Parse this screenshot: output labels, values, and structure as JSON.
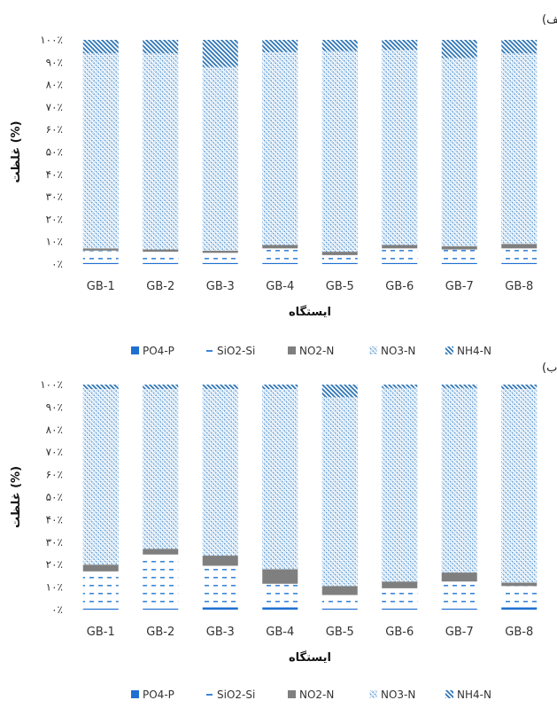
{
  "chart_data": [
    {
      "type": "bar",
      "stacked": true,
      "normalized": true,
      "panel_label": "(الف)",
      "xlabel": "ایستگاه",
      "ylabel": "غلظت (%)",
      "ylim": [
        0,
        100
      ],
      "yticks": [
        "۰٪",
        "۱۰٪",
        "۲۰٪",
        "۳۰٪",
        "۴۰٪",
        "۵۰٪",
        "۶۰٪",
        "۷۰٪",
        "۸۰٪",
        "۹۰٪",
        "۱۰۰٪"
      ],
      "grid": false,
      "legend_position": "bottom",
      "categories": [
        "GB-1",
        "GB-2",
        "GB-3",
        "GB-4",
        "GB-5",
        "GB-6",
        "GB-7",
        "GB-8"
      ],
      "series": [
        {
          "name": "PO4-P",
          "values": [
            0.5,
            0.5,
            0.5,
            0.5,
            0.5,
            0.5,
            0.5,
            0.5
          ]
        },
        {
          "name": "SiO2-Si",
          "values": [
            5.5,
            5.0,
            4.5,
            6.5,
            3.5,
            6.5,
            6.0,
            6.5
          ]
        },
        {
          "name": "NO2-N",
          "values": [
            1.0,
            1.0,
            1.0,
            1.5,
            1.5,
            1.5,
            1.5,
            2.0
          ]
        },
        {
          "name": "NO3-N",
          "values": [
            87.0,
            87.5,
            82.0,
            86.0,
            89.5,
            87.0,
            84.0,
            85.0
          ]
        },
        {
          "name": "NH4-N",
          "values": [
            6.0,
            6.0,
            12.0,
            5.5,
            5.0,
            4.5,
            8.0,
            6.0
          ]
        }
      ]
    },
    {
      "type": "bar",
      "stacked": true,
      "normalized": true,
      "panel_label": "(ب)",
      "xlabel": "ایستگاه",
      "ylabel": "غلظت (%)",
      "ylim": [
        0,
        100
      ],
      "yticks": [
        "۰٪",
        "۱۰٪",
        "۲۰٪",
        "۳۰٪",
        "۴۰٪",
        "۵۰٪",
        "۶۰٪",
        "۷۰٪",
        "۸۰٪",
        "۹۰٪",
        "۱۰۰٪"
      ],
      "grid": false,
      "legend_position": "bottom",
      "categories": [
        "GB-1",
        "GB-2",
        "GB-3",
        "GB-4",
        "GB-5",
        "GB-6",
        "GB-7",
        "GB-8"
      ],
      "series": [
        {
          "name": "PO4-P",
          "values": [
            0.5,
            0.5,
            1.0,
            1.0,
            0.5,
            0.5,
            0.5,
            1.0
          ]
        },
        {
          "name": "SiO2-Si",
          "values": [
            16.5,
            24.0,
            18.5,
            10.5,
            6.0,
            9.0,
            12.0,
            9.5
          ]
        },
        {
          "name": "NO2-N",
          "values": [
            3.0,
            2.5,
            4.5,
            6.5,
            4.0,
            3.0,
            4.0,
            1.5
          ]
        },
        {
          "name": "NO3-N",
          "values": [
            78.0,
            71.0,
            74.0,
            80.0,
            84.0,
            86.0,
            82.0,
            86.0
          ]
        },
        {
          "name": "NH4-N",
          "values": [
            2.0,
            2.0,
            2.0,
            2.0,
            5.5,
            1.5,
            1.5,
            2.0
          ]
        }
      ]
    }
  ],
  "legend_items": [
    {
      "name": "PO4-P",
      "style": "solid",
      "color": "#1f6fd0"
    },
    {
      "name": "SiO2-Si",
      "style": "dash",
      "color": "#3a86d8"
    },
    {
      "name": "NO2-N",
      "style": "solid",
      "color": "#7f7f7f"
    },
    {
      "name": "NO3-N",
      "style": "dots",
      "color": "#5b9bd5"
    },
    {
      "name": "NH4-N",
      "style": "hatch",
      "color": "#2e75b6"
    }
  ]
}
